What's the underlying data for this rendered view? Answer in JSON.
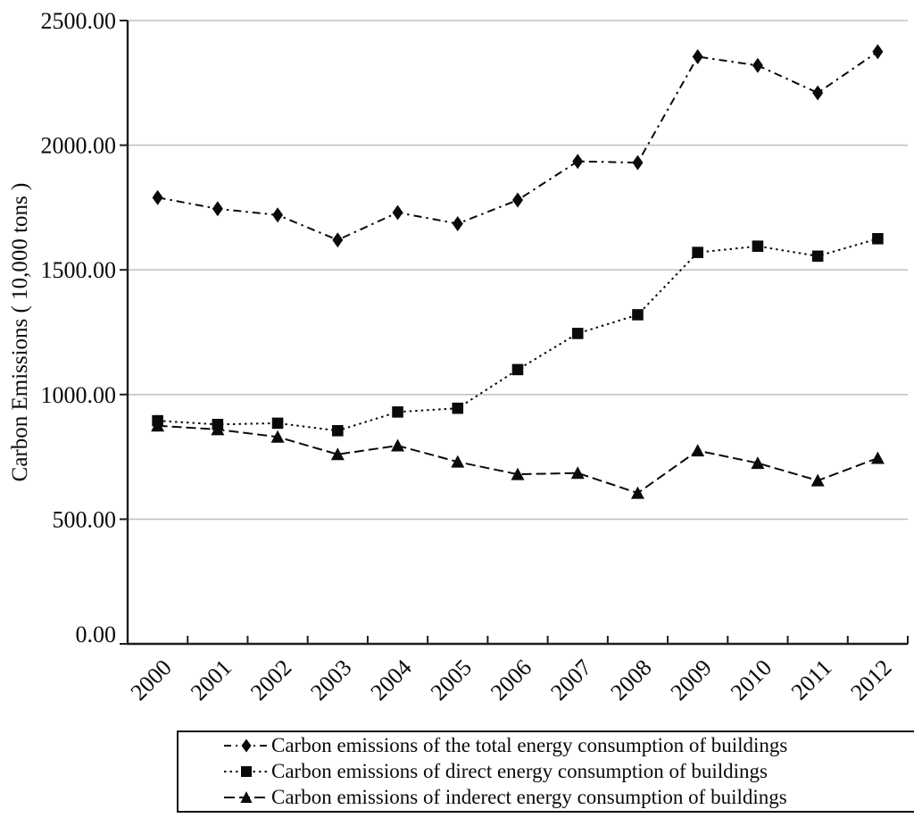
{
  "chart_data": {
    "type": "line",
    "title": "",
    "xlabel": "",
    "ylabel": "Carbon Emissions ( 10,000 tons )",
    "ylim": [
      0,
      2500
    ],
    "y_ticks": [
      0,
      500,
      1000,
      1500,
      2000,
      2500
    ],
    "y_tick_labels": [
      "0.00",
      "500.00",
      "1000.00",
      "1500.00",
      "2000.00",
      "2500.00"
    ],
    "categories": [
      "2000",
      "2001",
      "2002",
      "2003",
      "2004",
      "2005",
      "2006",
      "2007",
      "2008",
      "2009",
      "2010",
      "2011",
      "2012"
    ],
    "grid": "horizontal-only",
    "legend_position": "bottom",
    "line_color": "#0a0a0a",
    "grid_color": "#c3c3c3",
    "series": [
      {
        "name": "Carbon emissions of the total energy consumption of buildings",
        "marker": "diamond",
        "line_style": "dash-dot",
        "values": [
          1790,
          1745,
          1720,
          1620,
          1730,
          1685,
          1780,
          1935,
          1930,
          2355,
          2320,
          2210,
          2375
        ]
      },
      {
        "name": "Carbon emissions of direct energy consumption of buildings",
        "marker": "square",
        "line_style": "dotted",
        "values": [
          895,
          880,
          885,
          855,
          930,
          945,
          1100,
          1245,
          1320,
          1570,
          1595,
          1555,
          1625
        ]
      },
      {
        "name": "Carbon emissions of inderect energy consumption of buildings",
        "marker": "triangle",
        "line_style": "dashed",
        "values": [
          875,
          860,
          830,
          760,
          795,
          730,
          680,
          685,
          605,
          775,
          725,
          655,
          745
        ]
      }
    ]
  }
}
